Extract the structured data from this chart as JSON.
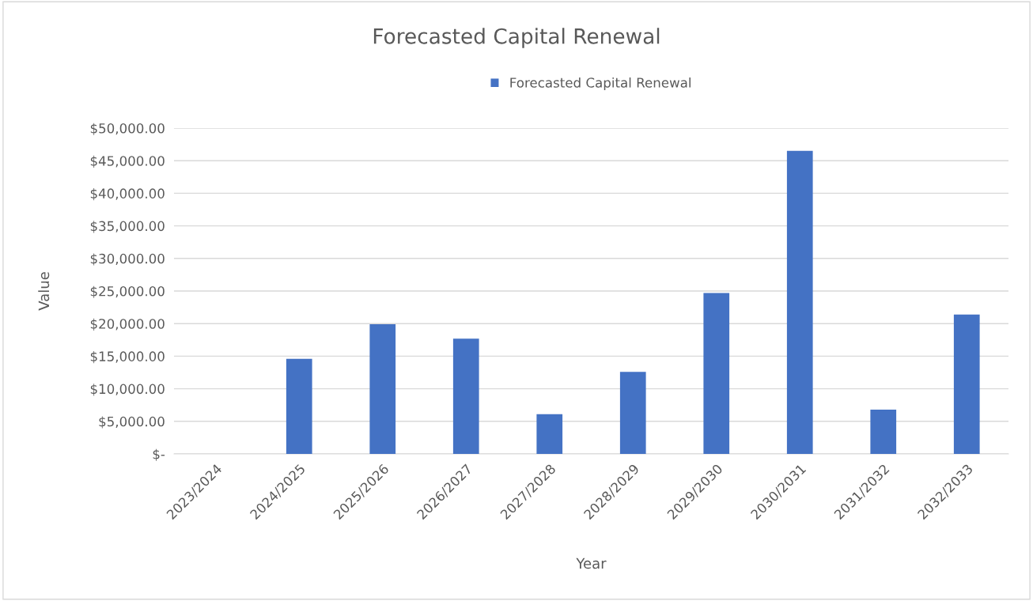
{
  "chart_data": {
    "type": "bar",
    "title": "Forecasted Capital Renewal",
    "xlabel": "Year",
    "ylabel": "Value",
    "categories": [
      "2023/2024",
      "2024/2025",
      "2025/2026",
      "2026/2027",
      "2027/2028",
      "2028/2029",
      "2029/2030",
      "2030/2031",
      "2031/2032",
      "2032/2033"
    ],
    "series": [
      {
        "name": "Forecasted Capital Renewal",
        "color": "#4472c4",
        "values": [
          null,
          14600,
          19900,
          17700,
          6100,
          12600,
          24700,
          46500,
          6800,
          21400
        ]
      }
    ],
    "ylim": [
      0,
      50000
    ],
    "yticks": [
      {
        "value": 0,
        "label": "$-"
      },
      {
        "value": 5000,
        "label": "$5,000.00"
      },
      {
        "value": 10000,
        "label": "$10,000.00"
      },
      {
        "value": 15000,
        "label": "$15,000.00"
      },
      {
        "value": 20000,
        "label": "$20,000.00"
      },
      {
        "value": 25000,
        "label": "$25,000.00"
      },
      {
        "value": 30000,
        "label": "$30,000.00"
      },
      {
        "value": 35000,
        "label": "$35,000.00"
      },
      {
        "value": 40000,
        "label": "$40,000.00"
      },
      {
        "value": 45000,
        "label": "$45,000.00"
      },
      {
        "value": 50000,
        "label": "$50,000.00"
      }
    ],
    "grid": "y",
    "legend": "top"
  }
}
